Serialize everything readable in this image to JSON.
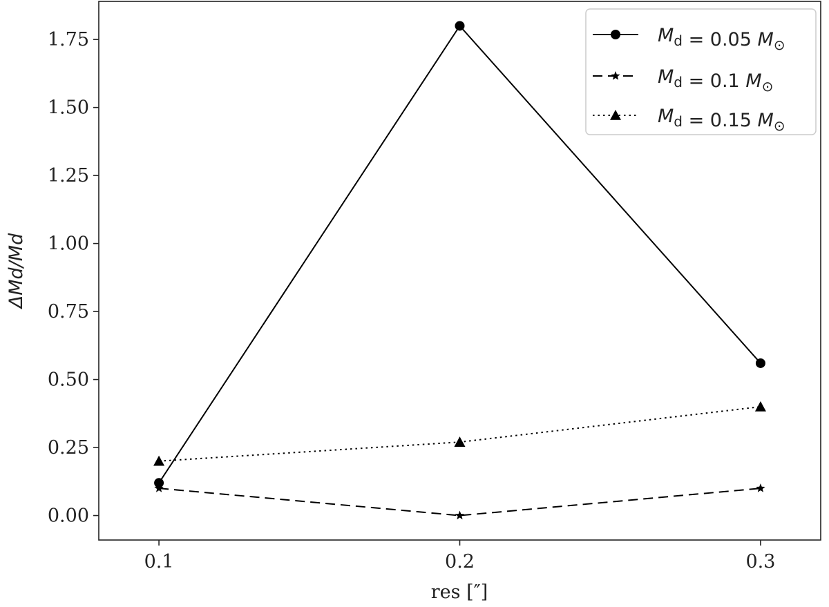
{
  "chart_data": {
    "type": "line",
    "x": [
      0.1,
      0.2,
      0.3
    ],
    "x_tick_labels": [
      "0.1",
      "0.2",
      "0.3"
    ],
    "y_tick_labels": [
      "0.00",
      "0.25",
      "0.50",
      "0.75",
      "1.00",
      "1.25",
      "1.50",
      "1.75"
    ],
    "y_ticks": [
      0.0,
      0.25,
      0.5,
      0.75,
      1.0,
      1.25,
      1.5,
      1.75
    ],
    "xlim": [
      0.08,
      0.32
    ],
    "ylim": [
      -0.09,
      1.89
    ],
    "xlabel": "res [″]",
    "ylabel": "ΔMd/Md",
    "grid": false,
    "legend_position": "top-right",
    "series": [
      {
        "name": "Md = 0.05 M⊙",
        "legend": {
          "mass": "0.05"
        },
        "values": [
          0.12,
          1.8,
          0.56
        ],
        "line_style": "solid",
        "marker": "circle",
        "color": "#000000"
      },
      {
        "name": "Md = 0.1 M⊙",
        "legend": {
          "mass": "0.1"
        },
        "values": [
          0.1,
          0.0,
          0.1
        ],
        "line_style": "dashed",
        "marker": "star",
        "color": "#000000"
      },
      {
        "name": "Md = 0.15 M⊙",
        "legend": {
          "mass": "0.15"
        },
        "values": [
          0.2,
          0.27,
          0.4
        ],
        "line_style": "dotted",
        "marker": "triangle",
        "color": "#000000"
      }
    ]
  }
}
